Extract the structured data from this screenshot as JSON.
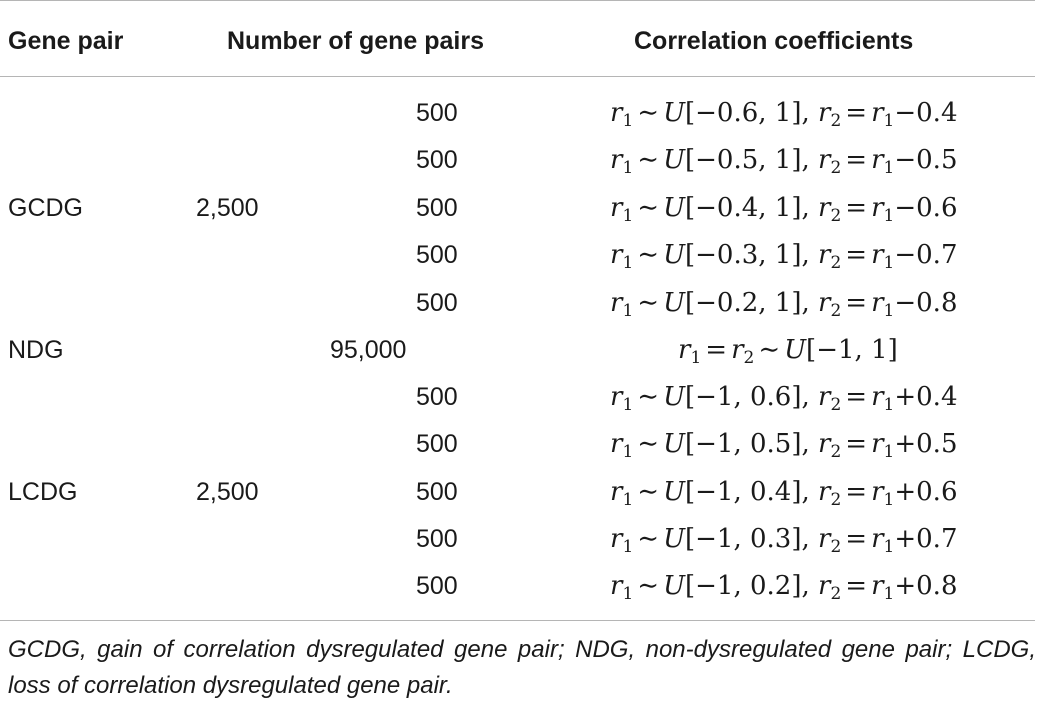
{
  "table": {
    "headers": [
      "Gene pair",
      "Number of gene pairs",
      "Correlation coefficients"
    ],
    "groups": [
      {
        "name": "GCDG",
        "total": "2,500"
      },
      {
        "name": "NDG",
        "total": "95,000"
      },
      {
        "name": "LCDG",
        "total": "2,500"
      }
    ],
    "rows": [
      {
        "count": "500",
        "range": "[−0.6, 1]",
        "sign": "−",
        "delta": "0.4"
      },
      {
        "count": "500",
        "range": "[−0.5, 1]",
        "sign": "−",
        "delta": "0.5"
      },
      {
        "count": "500",
        "range": "[−0.4, 1]",
        "sign": "−",
        "delta": "0.6"
      },
      {
        "count": "500",
        "range": "[−0.3, 1]",
        "sign": "−",
        "delta": "0.7"
      },
      {
        "count": "500",
        "range": "[−0.2, 1]",
        "sign": "−",
        "delta": "0.8"
      },
      {
        "count": "",
        "range": "[−1, 1]",
        "sign": "",
        "delta": ""
      },
      {
        "count": "500",
        "range": "[−1, 0.6]",
        "sign": "+",
        "delta": "0.4"
      },
      {
        "count": "500",
        "range": "[−1, 0.5]",
        "sign": "+",
        "delta": "0.5"
      },
      {
        "count": "500",
        "range": "[−1, 0.4]",
        "sign": "+",
        "delta": "0.6"
      },
      {
        "count": "500",
        "range": "[−1, 0.3]",
        "sign": "+",
        "delta": "0.7"
      },
      {
        "count": "500",
        "range": "[−1, 0.2]",
        "sign": "+",
        "delta": "0.8"
      }
    ]
  },
  "footnote": "GCDG, gain of correlation dysregulated gene pair; NDG, non-dysregulated gene pair; LCDG, loss of correlation dysregulated gene pair."
}
